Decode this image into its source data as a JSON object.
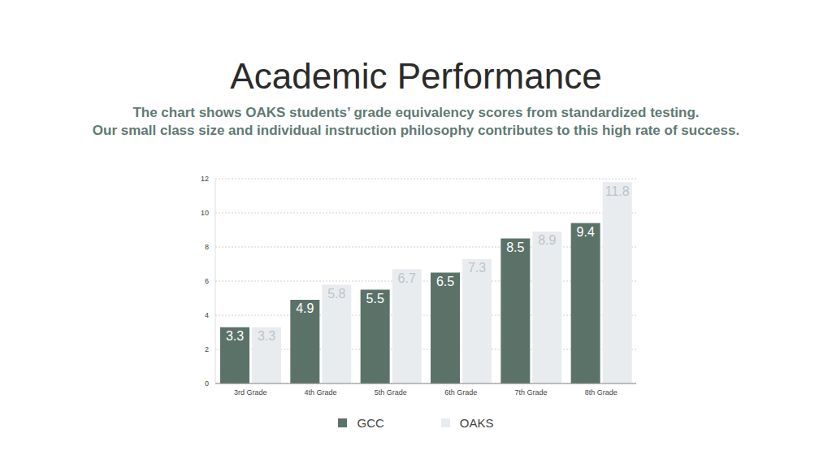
{
  "chart_data": {
    "type": "bar",
    "title": "Academic Performance",
    "subtitle": [
      "The chart shows OAKS students’ grade equivalency scores from standardized testing.",
      "Our small class size and individual instruction philosophy contributes to this high rate of success."
    ],
    "categories": [
      "3rd Grade",
      "4th Grade",
      "5th Grade",
      "6th Grade",
      "7th Grade",
      "8th Grade"
    ],
    "series": [
      {
        "name": "GCC",
        "color": "#5b7269",
        "values": [
          3.3,
          4.9,
          5.5,
          6.5,
          8.5,
          9.4
        ]
      },
      {
        "name": "OAKS",
        "color": "#e9ecef",
        "values": [
          3.3,
          5.8,
          6.7,
          7.3,
          8.9,
          11.8
        ]
      }
    ],
    "ylim": [
      0,
      12
    ],
    "yticks": [
      0,
      2,
      4,
      6,
      8,
      10,
      12
    ],
    "grid": true,
    "legend": "bottom",
    "data_labels": true
  }
}
